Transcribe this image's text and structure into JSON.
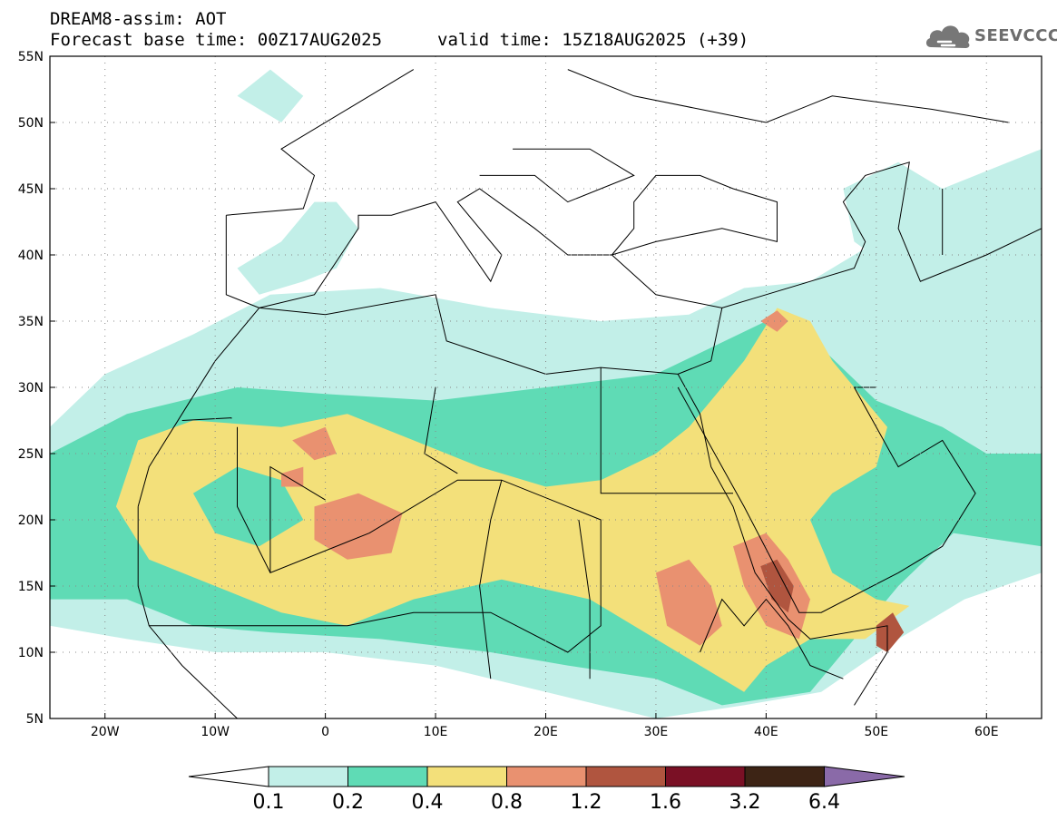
{
  "header": {
    "title": "DREAM8-assim: AOT",
    "forecast_base": "Forecast base time: 00Z17AUG2025",
    "valid_time": "valid time: 15Z18AUG2025 (+39)"
  },
  "logo": {
    "text": "SEEVCCC",
    "icon": "cloud-icon"
  },
  "map": {
    "projection": "equirectangular",
    "lon_range": [
      -25,
      65
    ],
    "lat_range": [
      5,
      55
    ],
    "lat_labels": [
      "55N",
      "50N",
      "45N",
      "40N",
      "35N",
      "30N",
      "25N",
      "20N",
      "15N",
      "10N",
      "5N"
    ],
    "lon_labels": [
      "20W",
      "10W",
      "0",
      "10E",
      "20E",
      "30E",
      "40E",
      "50E",
      "60E"
    ],
    "grid": "dotted"
  },
  "legend": {
    "levels": [
      "0.1",
      "0.2",
      "0.4",
      "0.8",
      "1.2",
      "1.6",
      "3.2",
      "6.4"
    ],
    "colors": [
      "#ffffff",
      "#c2efe8",
      "#5fdbb5",
      "#f3e07a",
      "#e99170",
      "#b0553f",
      "#7a1025",
      "#3d2415",
      "#8a6aa8"
    ]
  }
}
